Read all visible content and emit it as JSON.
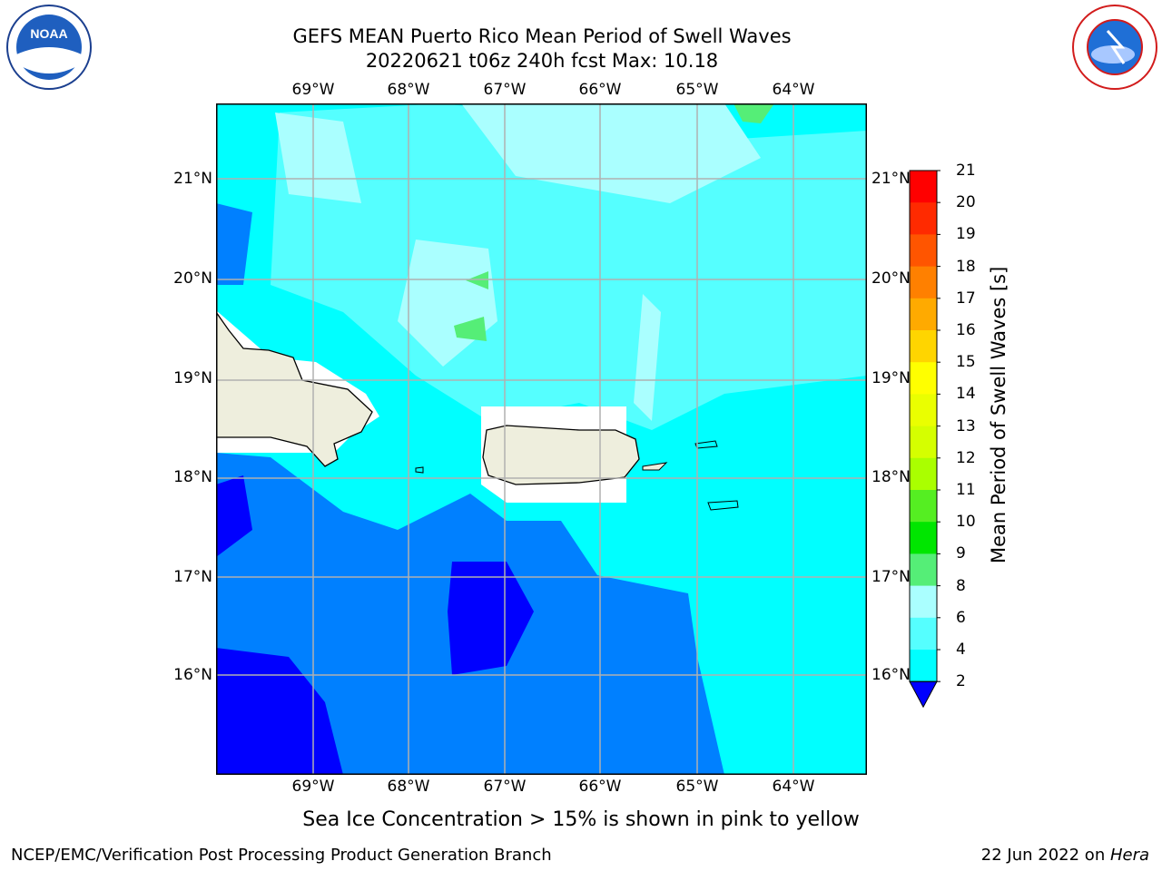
{
  "title_line1": "GEFS MEAN Puerto Rico Mean Period of Swell Waves",
  "title_line2": "20220621 t06z 240h fcst   Max: 10.18",
  "lon_ticks": [
    "69°W",
    "68°W",
    "67°W",
    "66°W",
    "65°W",
    "64°W"
  ],
  "lat_ticks": [
    "21°N",
    "20°N",
    "19°N",
    "18°N",
    "17°N",
    "16°N"
  ],
  "colorbar": {
    "label": "Mean Period of Swell Waves [s]",
    "levels": [
      "21",
      "20",
      "19",
      "18",
      "17",
      "16",
      "15",
      "14",
      "13",
      "12",
      "11",
      "10",
      "9",
      "8",
      "6",
      "4",
      "2"
    ],
    "colors": [
      "#ff0000",
      "#ff2a00",
      "#ff5500",
      "#ff8000",
      "#ffaa00",
      "#ffd500",
      "#ffff00",
      "#eaff00",
      "#d5ff00",
      "#aaff00",
      "#55ee22",
      "#00e600",
      "#55ee77",
      "#aaffff",
      "#55ffff",
      "#00ffff",
      "#0080ff",
      "#0000ff"
    ]
  },
  "footer_note": "Sea Ice Concentration > 15% is shown in pink to yellow",
  "footer_left": "NCEP/EMC/Verification Post Processing Product Generation Branch",
  "footer_right_date": "22 Jun 2022 on ",
  "footer_right_host": "Hera",
  "logos": {
    "left": "NOAA",
    "right": "NATIONAL WEATHER SERVICE"
  }
}
